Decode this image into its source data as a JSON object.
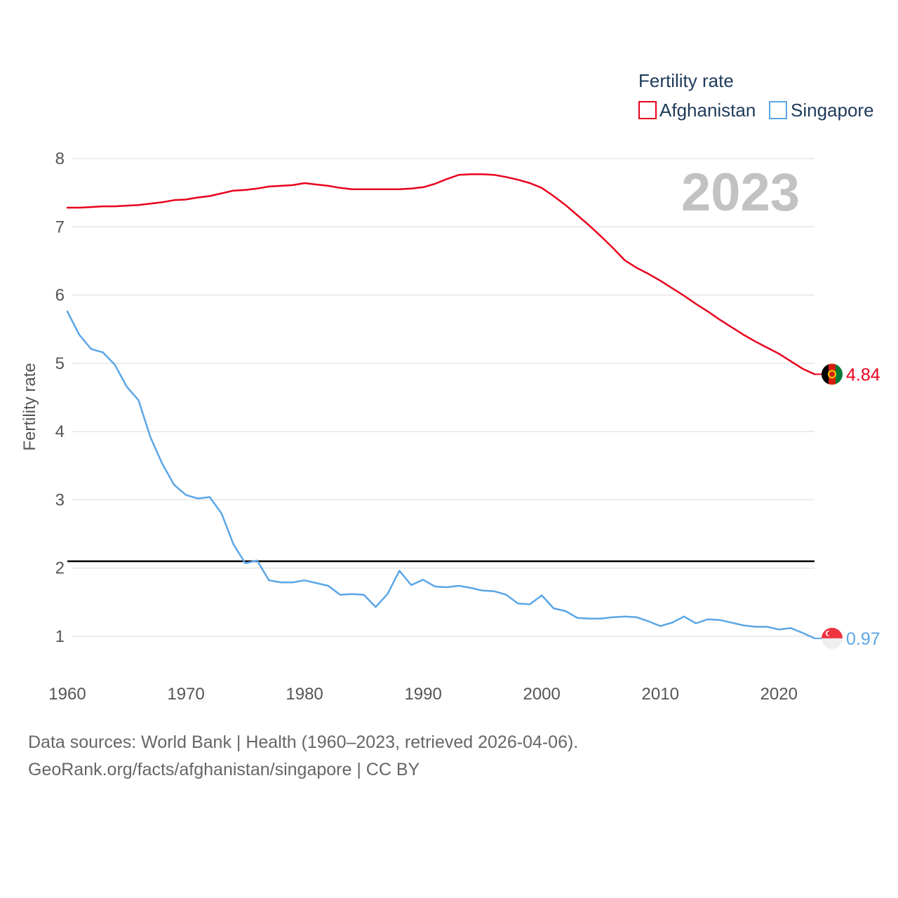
{
  "chart_data": {
    "type": "line",
    "year_display": "2023",
    "ylabel": "Fertility rate",
    "xlabel": "",
    "xlim": [
      1960,
      2023
    ],
    "ylim": [
      0.3,
      8.2
    ],
    "yticks": [
      1,
      2,
      3,
      4,
      5,
      6,
      7,
      8
    ],
    "xticks": [
      1960,
      1970,
      1980,
      1990,
      2000,
      2010,
      2020
    ],
    "ytick_labels": [
      "1",
      "2",
      "3",
      "4",
      "5",
      "6",
      "7",
      "8"
    ],
    "xtick_labels": [
      "1960",
      "1970",
      "1980",
      "1990",
      "2000",
      "2010",
      "2020"
    ],
    "reference_line": {
      "y": 2.1,
      "color": "#000000"
    },
    "legend": {
      "title": "Fertility rate",
      "position": "top-right"
    },
    "x": [
      1960,
      1961,
      1962,
      1963,
      1964,
      1965,
      1966,
      1967,
      1968,
      1969,
      1970,
      1971,
      1972,
      1973,
      1974,
      1975,
      1976,
      1977,
      1978,
      1979,
      1980,
      1981,
      1982,
      1983,
      1984,
      1985,
      1986,
      1987,
      1988,
      1989,
      1990,
      1991,
      1992,
      1993,
      1994,
      1995,
      1996,
      1997,
      1998,
      1999,
      2000,
      2001,
      2002,
      2003,
      2004,
      2005,
      2006,
      2007,
      2008,
      2009,
      2010,
      2011,
      2012,
      2013,
      2014,
      2015,
      2016,
      2017,
      2018,
      2019,
      2020,
      2021,
      2022,
      2023
    ],
    "series": [
      {
        "name": "Afghanistan",
        "color": "#e8001c",
        "end_label": "4.84",
        "flag": "afghanistan-flag-icon",
        "values": [
          7.28,
          7.28,
          7.29,
          7.3,
          7.3,
          7.31,
          7.32,
          7.34,
          7.36,
          7.39,
          7.4,
          7.43,
          7.45,
          7.49,
          7.53,
          7.54,
          7.56,
          7.59,
          7.6,
          7.61,
          7.64,
          7.62,
          7.6,
          7.57,
          7.55,
          7.55,
          7.55,
          7.55,
          7.55,
          7.56,
          7.58,
          7.63,
          7.7,
          7.76,
          7.77,
          7.77,
          7.76,
          7.73,
          7.69,
          7.64,
          7.57,
          7.45,
          7.32,
          7.17,
          7.02,
          6.86,
          6.69,
          6.51,
          6.4,
          6.31,
          6.21,
          6.1,
          5.99,
          5.87,
          5.76,
          5.64,
          5.53,
          5.42,
          5.32,
          5.23,
          5.14,
          5.03,
          4.92,
          4.84
        ]
      },
      {
        "name": "Singapore",
        "color": "#5ba6e6",
        "end_label": "0.97",
        "flag": "singapore-flag-icon",
        "values": [
          5.76,
          5.42,
          5.21,
          5.16,
          4.98,
          4.66,
          4.46,
          3.92,
          3.53,
          3.22,
          3.07,
          3.02,
          3.04,
          2.8,
          2.35,
          2.07,
          2.11,
          1.82,
          1.79,
          1.79,
          1.82,
          1.78,
          1.74,
          1.61,
          1.62,
          1.61,
          1.43,
          1.62,
          1.96,
          1.75,
          1.83,
          1.73,
          1.72,
          1.74,
          1.71,
          1.67,
          1.66,
          1.61,
          1.48,
          1.47,
          1.6,
          1.41,
          1.37,
          1.27,
          1.26,
          1.26,
          1.28,
          1.29,
          1.28,
          1.22,
          1.15,
          1.2,
          1.29,
          1.19,
          1.25,
          1.24,
          1.2,
          1.16,
          1.14,
          1.14,
          1.1,
          1.12,
          1.05,
          0.97
        ]
      }
    ]
  },
  "footer": {
    "sources": "Data sources: World Bank | Health (1960–2023, retrieved 2026-04-06).",
    "link": "GeoRank.org/facts/afghanistan/singapore | CC BY"
  }
}
